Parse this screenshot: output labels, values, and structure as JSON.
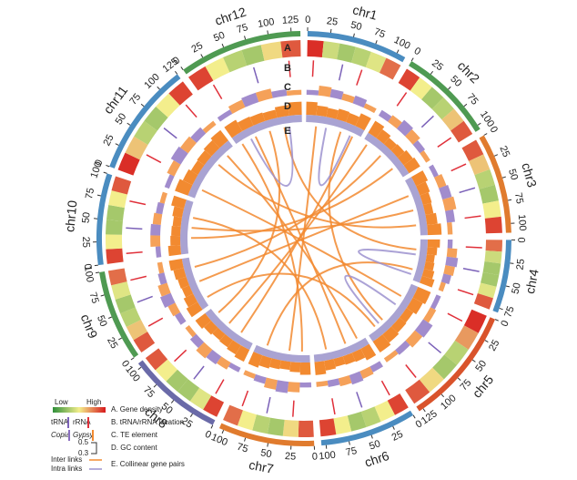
{
  "chart_data": {
    "type": "circos",
    "track_labels": [
      "A",
      "B",
      "C",
      "D",
      "E"
    ],
    "heat_colors": [
      "#2f8f3a",
      "#f3ee8c",
      "#d7191c"
    ],
    "gc_range": [
      0.3,
      0.5
    ],
    "gc_color": "#f28a30",
    "gc_base_color": "#a9a3d2",
    "te_colors": [
      "#8a6fc0",
      "#f28a30"
    ],
    "rna_colors": [
      "#e0303a",
      "#7b61b8"
    ],
    "inter_color": "#f28a30",
    "intra_color": "#9c92cf",
    "chromosomes": [
      {
        "name": "chr1",
        "length": 110,
        "ticks": [
          0,
          25,
          50,
          75,
          100
        ],
        "color": "#4a8cc0",
        "gene_density": [
          0.95,
          0.4,
          0.3,
          0.35,
          0.45,
          0.8
        ],
        "te": [
          0.3,
          0.6,
          0.5,
          0.4,
          0.5,
          0.3
        ],
        "gc": [
          0.46,
          0.42,
          0.41,
          0.43,
          0.42,
          0.47
        ],
        "rna": [
          8,
          45,
          70
        ]
      },
      {
        "name": "chr2",
        "length": 105,
        "ticks": [
          0,
          25,
          50,
          75,
          100
        ],
        "color": "#4f9a52",
        "gene_density": [
          0.9,
          0.5,
          0.3,
          0.35,
          0.6,
          0.85
        ],
        "te": [
          0.4,
          0.5,
          0.7,
          0.6,
          0.4,
          0.3
        ],
        "gc": [
          0.47,
          0.43,
          0.4,
          0.41,
          0.44,
          0.46
        ],
        "rna": [
          15,
          60,
          95
        ]
      },
      {
        "name": "chr3",
        "length": 110,
        "ticks": [
          0,
          25,
          50,
          75,
          100
        ],
        "color": "#e07b2e",
        "gene_density": [
          0.85,
          0.6,
          0.35,
          0.3,
          0.5,
          0.9
        ],
        "te": [
          0.3,
          0.5,
          0.6,
          0.7,
          0.5,
          0.3
        ],
        "gc": [
          0.46,
          0.43,
          0.41,
          0.4,
          0.43,
          0.47
        ],
        "rna": [
          20,
          52,
          88
        ]
      },
      {
        "name": "chr4",
        "length": 80,
        "ticks": [
          0,
          25,
          50,
          75
        ],
        "color": "#4a8cc0",
        "gene_density": [
          0.8,
          0.4,
          0.3,
          0.3,
          0.45,
          0.85
        ],
        "te": [
          0.3,
          0.6,
          0.7,
          0.6,
          0.5,
          0.3
        ],
        "gc": [
          0.45,
          0.42,
          0.4,
          0.41,
          0.43,
          0.46
        ],
        "rna": [
          10,
          40,
          70
        ]
      },
      {
        "name": "chr5",
        "length": 130,
        "ticks": [
          0,
          25,
          50,
          75,
          100,
          125
        ],
        "color": "#d9532b",
        "gene_density": [
          0.95,
          0.7,
          0.35,
          0.3,
          0.55,
          0.85
        ],
        "te": [
          0.3,
          0.4,
          0.7,
          0.6,
          0.4,
          0.3
        ],
        "gc": [
          0.47,
          0.44,
          0.4,
          0.41,
          0.43,
          0.46
        ],
        "rna": [
          18,
          66,
          110
        ]
      },
      {
        "name": "chr6",
        "length": 105,
        "ticks": [
          0,
          25,
          50,
          75,
          100
        ],
        "color": "#4a8cc0",
        "gene_density": [
          0.9,
          0.5,
          0.35,
          0.3,
          0.5,
          0.9
        ],
        "te": [
          0.4,
          0.5,
          0.6,
          0.5,
          0.4,
          0.3
        ],
        "gc": [
          0.46,
          0.42,
          0.41,
          0.4,
          0.42,
          0.46
        ],
        "rna": [
          12,
          50,
          85
        ]
      },
      {
        "name": "chr7",
        "length": 105,
        "ticks": [
          0,
          25,
          50,
          75,
          100
        ],
        "color": "#e07b2e",
        "gene_density": [
          0.85,
          0.55,
          0.3,
          0.35,
          0.5,
          0.8
        ],
        "te": [
          0.3,
          0.6,
          0.7,
          0.6,
          0.4,
          0.3
        ],
        "gc": [
          0.45,
          0.42,
          0.4,
          0.41,
          0.43,
          0.46
        ],
        "rna": [
          25,
          58,
          90
        ]
      },
      {
        "name": "chr8",
        "length": 105,
        "ticks": [
          0,
          25,
          50,
          75,
          100
        ],
        "color": "#6a6aa8",
        "gene_density": [
          0.9,
          0.45,
          0.3,
          0.3,
          0.5,
          0.85
        ],
        "te": [
          0.3,
          0.5,
          0.6,
          0.7,
          0.5,
          0.3
        ],
        "gc": [
          0.46,
          0.43,
          0.41,
          0.4,
          0.42,
          0.45
        ],
        "rna": [
          14,
          47,
          80
        ]
      },
      {
        "name": "chr9",
        "length": 100,
        "ticks": [
          0,
          25,
          50,
          75,
          100
        ],
        "color": "#4f9a52",
        "gene_density": [
          0.85,
          0.6,
          0.35,
          0.3,
          0.45,
          0.8
        ],
        "te": [
          0.4,
          0.5,
          0.7,
          0.6,
          0.4,
          0.3
        ],
        "gc": [
          0.46,
          0.43,
          0.4,
          0.41,
          0.43,
          0.46
        ],
        "rna": [
          22,
          55,
          84
        ]
      },
      {
        "name": "chr10",
        "length": 100,
        "ticks": [
          0,
          25,
          50,
          75,
          100
        ],
        "color": "#4a8cc0",
        "gene_density": [
          0.9,
          0.5,
          0.3,
          0.3,
          0.5,
          0.85
        ],
        "te": [
          0.3,
          0.6,
          0.6,
          0.5,
          0.4,
          0.3
        ],
        "gc": [
          0.45,
          0.42,
          0.41,
          0.4,
          0.42,
          0.46
        ],
        "rna": [
          10,
          42,
          76
        ]
      },
      {
        "name": "chr11",
        "length": 125,
        "ticks": [
          0,
          25,
          50,
          75,
          100,
          125
        ],
        "color": "#4a8cc0",
        "gene_density": [
          0.95,
          0.6,
          0.35,
          0.3,
          0.5,
          0.9
        ],
        "te": [
          0.3,
          0.5,
          0.7,
          0.6,
          0.5,
          0.3
        ],
        "gc": [
          0.47,
          0.43,
          0.4,
          0.41,
          0.43,
          0.46
        ],
        "rna": [
          30,
          70,
          110
        ]
      },
      {
        "name": "chr12",
        "length": 135,
        "ticks": [
          0,
          25,
          50,
          75,
          100,
          125
        ],
        "color": "#4f9a52",
        "gene_density": [
          0.9,
          0.5,
          0.35,
          0.3,
          0.55,
          0.85
        ],
        "te": [
          0.3,
          0.5,
          0.6,
          0.6,
          0.4,
          0.3
        ],
        "gc": [
          0.46,
          0.42,
          0.41,
          0.4,
          0.43,
          0.46
        ],
        "rna": [
          20,
          75,
          120
        ]
      }
    ],
    "inter_links": [
      {
        "a": "chr1",
        "a_pos": 20,
        "b": "chr7",
        "b_pos": 40
      },
      {
        "a": "chr1",
        "a_pos": 70,
        "b": "chr5",
        "b_pos": 90
      },
      {
        "a": "chr2",
        "a_pos": 10,
        "b": "chr8",
        "b_pos": 60
      },
      {
        "a": "chr2",
        "a_pos": 80,
        "b": "chr10",
        "b_pos": 30
      },
      {
        "a": "chr3",
        "a_pos": 30,
        "b": "chr9",
        "b_pos": 50
      },
      {
        "a": "chr3",
        "a_pos": 90,
        "b": "chr11",
        "b_pos": 80
      },
      {
        "a": "chr4",
        "a_pos": 20,
        "b": "chr12",
        "b_pos": 100
      },
      {
        "a": "chr4",
        "a_pos": 60,
        "b": "chr7",
        "b_pos": 85
      },
      {
        "a": "chr5",
        "a_pos": 30,
        "b": "chr11",
        "b_pos": 20
      },
      {
        "a": "chr5",
        "a_pos": 110,
        "b": "chr9",
        "b_pos": 15
      },
      {
        "a": "chr6",
        "a_pos": 40,
        "b": "chr12",
        "b_pos": 40
      },
      {
        "a": "chr6",
        "a_pos": 80,
        "b": "chr10",
        "b_pos": 70
      },
      {
        "a": "chr7",
        "a_pos": 15,
        "b": "chr12",
        "b_pos": 10
      },
      {
        "a": "chr8",
        "a_pos": 30,
        "b": "chr1",
        "b_pos": 95
      },
      {
        "a": "chr9",
        "a_pos": 80,
        "b": "chr2",
        "b_pos": 45
      },
      {
        "a": "chr10",
        "a_pos": 50,
        "b": "chr3",
        "b_pos": 60
      },
      {
        "a": "chr11",
        "a_pos": 105,
        "b": "chr6",
        "b_pos": 15
      },
      {
        "a": "chr12",
        "a_pos": 70,
        "b": "chr8",
        "b_pos": 90
      }
    ],
    "intra_links": [
      {
        "a": "chr4",
        "a_pos": 30,
        "b": "chr4",
        "b_pos": 70
      },
      {
        "a": "chr1",
        "a_pos": 40,
        "b": "chr1",
        "b_pos": 90
      },
      {
        "a": "chr5",
        "a_pos": 50,
        "b": "chr5",
        "b_pos": 100
      },
      {
        "a": "chr12",
        "a_pos": 30,
        "b": "chr12",
        "b_pos": 110
      }
    ],
    "legend": {
      "low": "Low",
      "high": "High",
      "a": "A. Gene density",
      "trna": "tRNA",
      "rrna": "rRNA",
      "b": "B. tRNA/rRNA location",
      "copia": "Copia",
      "gypsy": "Gypsy",
      "c": "C. TE element",
      "gc_high": "0.5",
      "gc_low": "0.3",
      "d": "D. GC content",
      "inter": "Inter links",
      "intra": "Intra links",
      "e": "E. Collinear gene pairs"
    }
  }
}
